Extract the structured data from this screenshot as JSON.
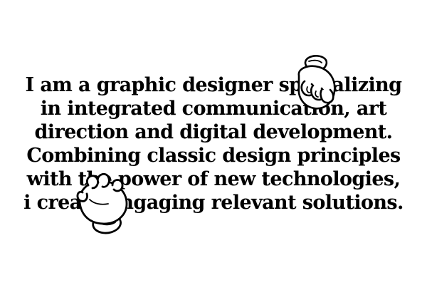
{
  "intro": {
    "lines": [
      "I am a graphic designer specializing",
      "in integrated communication, art",
      "direction and digital development.",
      "Combining classic design principles",
      "with the power of new technologies,",
      "i create engaging relevant solutions."
    ]
  },
  "icons": {
    "top": "cartoon-glove-hand-icon",
    "bottom": "cartoon-glove-hand-icon"
  },
  "colors": {
    "background": "#ffffff",
    "text": "#000000"
  }
}
